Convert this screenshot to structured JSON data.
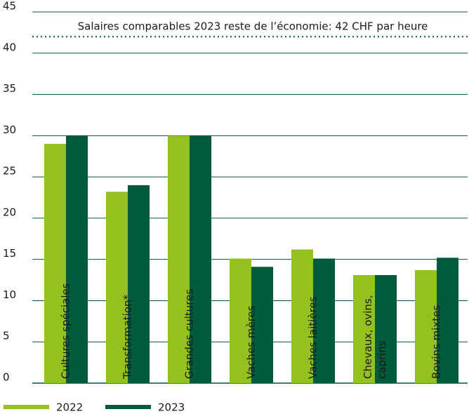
{
  "chart_data": {
    "type": "bar",
    "categories": [
      "Cultures spéciales",
      "Transformation*",
      "Grandes cultures",
      "Vaches mères",
      "Vaches laitières",
      "Chevaux, ovins, caprins",
      "Bovins mixtes"
    ],
    "series": [
      {
        "name": "2022",
        "color": "#95c11f",
        "values": [
          29.0,
          23.2,
          30.0,
          15.1,
          16.2,
          13.1,
          13.7
        ]
      },
      {
        "name": "2023",
        "color": "#005a3c",
        "values": [
          30.0,
          24.0,
          30.0,
          14.1,
          15.1,
          13.1,
          15.2
        ]
      }
    ],
    "reference_line": {
      "value": 42,
      "label": "Salaires comparables 2023 reste de l’économie: 42 CHF par heure",
      "color": "#005a3c"
    },
    "ylim": [
      0,
      45
    ],
    "yticks": [
      0,
      5,
      10,
      15,
      20,
      25,
      30,
      35,
      40,
      45
    ],
    "grid": true,
    "legend": "bottom-left"
  }
}
